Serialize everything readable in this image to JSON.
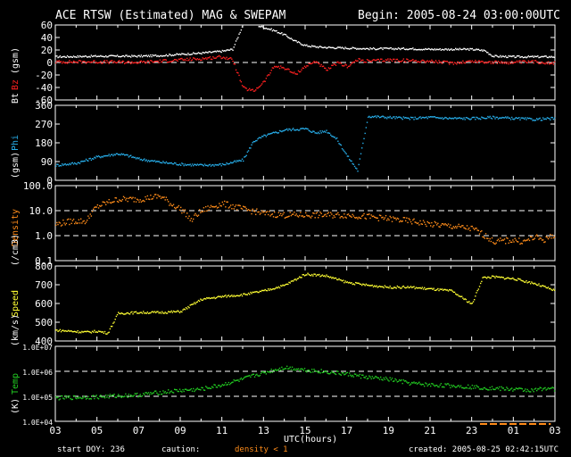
{
  "header": {
    "title": "ACE RTSW (Estimated) MAG & SWEPAM",
    "begin": "Begin: 2005-08-24 03:00:00UTC"
  },
  "footer": {
    "start_doy": "start DOY: 236",
    "caution_label": "caution:",
    "caution_value": "density < 1",
    "created": "created: 2005-08-25 02:42:15UTC"
  },
  "colors": {
    "bt": "#ffffff",
    "bz": "#ff2020",
    "phi": "#27aeea",
    "density": "#ff8c1a",
    "speed": "#ffff33",
    "temp": "#22cc22",
    "caution_bar": "#ff8c1a",
    "frame": "#ffffff"
  },
  "chart_data": [
    {
      "type": "scatter",
      "title": "ACE RTSW (Estimated) MAG & SWEPAM",
      "ylabel_parts": [
        "Bt",
        "Bz",
        "(gsm)"
      ],
      "ylim": [
        -60,
        60
      ],
      "yticks": [
        60,
        40,
        20,
        0,
        -20,
        -40,
        -60
      ],
      "dashed": [
        0
      ],
      "xlim": [
        0,
        24
      ],
      "series": [
        {
          "name": "Bt",
          "color": "bt",
          "noise": 1.5,
          "points": [
            [
              0,
              10
            ],
            [
              2,
              11
            ],
            [
              4,
              11
            ],
            [
              5,
              12
            ],
            [
              6,
              14
            ],
            [
              7,
              16
            ],
            [
              8,
              19
            ],
            [
              8.5,
              22
            ],
            [
              9,
              62
            ],
            [
              9.5,
              62
            ],
            [
              10,
              57
            ],
            [
              10.5,
              52
            ],
            [
              11,
              45
            ],
            [
              11.5,
              35
            ],
            [
              12,
              28
            ],
            [
              12.5,
              26
            ],
            [
              13,
              25
            ],
            [
              14,
              24
            ],
            [
              15,
              23
            ],
            [
              16,
              23
            ],
            [
              17,
              23
            ],
            [
              18,
              22
            ],
            [
              19,
              22
            ],
            [
              20,
              22
            ],
            [
              20.6,
              20
            ],
            [
              21,
              11
            ],
            [
              22,
              10
            ],
            [
              23,
              10
            ],
            [
              24,
              10
            ]
          ]
        },
        {
          "name": "Bz",
          "color": "bz",
          "noise": 2.5,
          "points": [
            [
              0,
              2
            ],
            [
              2,
              2
            ],
            [
              4,
              1
            ],
            [
              5,
              3
            ],
            [
              6,
              5
            ],
            [
              7,
              7
            ],
            [
              8,
              10
            ],
            [
              8.5,
              5
            ],
            [
              9,
              -40
            ],
            [
              9.5,
              -45
            ],
            [
              10,
              -30
            ],
            [
              10.5,
              -5
            ],
            [
              11,
              -8
            ],
            [
              11.5,
              -18
            ],
            [
              12,
              -5
            ],
            [
              12.5,
              3
            ],
            [
              13,
              -12
            ],
            [
              13.5,
              0
            ],
            [
              14,
              -5
            ],
            [
              14.5,
              5
            ],
            [
              15,
              3
            ],
            [
              16,
              5
            ],
            [
              17,
              4
            ],
            [
              18,
              3
            ],
            [
              19,
              0
            ],
            [
              20,
              3
            ],
            [
              20.6,
              2
            ],
            [
              21,
              1
            ],
            [
              22,
              1
            ],
            [
              23,
              2
            ],
            [
              24,
              0
            ]
          ]
        }
      ]
    },
    {
      "type": "scatter",
      "ylabel_parts": [
        "Phi",
        "(gsm)"
      ],
      "ylim": [
        0,
        360
      ],
      "yticks": [
        360,
        270,
        180,
        90,
        0
      ],
      "dashed": [],
      "xlim": [
        0,
        24
      ],
      "series": [
        {
          "name": "Phi",
          "color": "phi",
          "noise": 6,
          "points": [
            [
              0,
              75
            ],
            [
              1,
              85
            ],
            [
              2,
              115
            ],
            [
              3,
              130
            ],
            [
              3.5,
              120
            ],
            [
              4,
              105
            ],
            [
              5,
              90
            ],
            [
              6,
              80
            ],
            [
              7,
              75
            ],
            [
              8,
              78
            ],
            [
              9,
              100
            ],
            [
              9.5,
              190
            ],
            [
              10,
              215
            ],
            [
              10.5,
              230
            ],
            [
              11,
              245
            ],
            [
              12,
              250
            ],
            [
              12.5,
              230
            ],
            [
              13,
              240
            ],
            [
              13.5,
              200
            ],
            [
              14,
              120
            ],
            [
              14.5,
              50
            ],
            [
              15,
              310
            ],
            [
              16,
              305
            ],
            [
              17,
              300
            ],
            [
              18,
              305
            ],
            [
              19,
              300
            ],
            [
              20,
              300
            ],
            [
              21,
              305
            ],
            [
              22,
              300
            ],
            [
              23,
              295
            ],
            [
              24,
              300
            ]
          ]
        }
      ]
    },
    {
      "type": "scatter",
      "ylabel_parts": [
        "Density",
        "(/cm3)"
      ],
      "yscale": "log",
      "ylim": [
        0.1,
        100
      ],
      "yticks": [
        100,
        10,
        1,
        0.1
      ],
      "yticklabels": [
        "100.0",
        "10.0",
        "1.0",
        "0.1"
      ],
      "dashed": [
        10,
        1
      ],
      "xlim": [
        0,
        24
      ],
      "series": [
        {
          "name": "Density",
          "color": "density",
          "noise": 0.12,
          "points": [
            [
              0,
              3
            ],
            [
              0.8,
              4
            ],
            [
              1.5,
              4
            ],
            [
              2,
              15
            ],
            [
              3,
              30
            ],
            [
              4,
              30
            ],
            [
              5,
              40
            ],
            [
              5.5,
              20
            ],
            [
              6,
              12
            ],
            [
              6.5,
              4
            ],
            [
              7,
              10
            ],
            [
              8,
              20
            ],
            [
              9,
              12
            ],
            [
              10,
              8
            ],
            [
              11,
              7
            ],
            [
              12,
              7
            ],
            [
              13,
              7
            ],
            [
              14,
              7
            ],
            [
              15,
              6
            ],
            [
              16,
              5
            ],
            [
              17,
              4
            ],
            [
              18,
              3
            ],
            [
              19,
              2.5
            ],
            [
              20,
              2
            ],
            [
              20.5,
              1.2
            ],
            [
              21,
              0.6
            ],
            [
              22,
              0.7
            ],
            [
              22.5,
              0.6
            ],
            [
              23,
              0.9
            ],
            [
              23.5,
              0.7
            ],
            [
              24,
              1.2
            ]
          ]
        }
      ]
    },
    {
      "type": "scatter",
      "ylabel_parts": [
        "Speed",
        "(km/s)"
      ],
      "ylim": [
        400,
        800
      ],
      "yticks": [
        800,
        700,
        600,
        500,
        400
      ],
      "dashed": [],
      "xlim": [
        0,
        24
      ],
      "series": [
        {
          "name": "Speed",
          "color": "speed",
          "noise": 6,
          "points": [
            [
              0,
              460
            ],
            [
              1.5,
              450
            ],
            [
              2,
              455
            ],
            [
              2.5,
              445
            ],
            [
              3,
              550
            ],
            [
              4,
              555
            ],
            [
              5,
              555
            ],
            [
              6,
              560
            ],
            [
              7,
              625
            ],
            [
              8,
              640
            ],
            [
              9,
              650
            ],
            [
              10,
              670
            ],
            [
              11,
              700
            ],
            [
              11.5,
              730
            ],
            [
              12,
              760
            ],
            [
              13,
              750
            ],
            [
              14,
              715
            ],
            [
              15,
              700
            ],
            [
              16,
              690
            ],
            [
              17,
              690
            ],
            [
              18,
              680
            ],
            [
              19,
              670
            ],
            [
              20,
              600
            ],
            [
              20.5,
              740
            ],
            [
              21,
              745
            ],
            [
              22,
              735
            ],
            [
              23,
              710
            ],
            [
              24,
              670
            ]
          ]
        }
      ]
    },
    {
      "type": "scatter",
      "ylabel_parts": [
        "Temp",
        "(K)"
      ],
      "yscale": "log",
      "ylim": [
        10000,
        10000000
      ],
      "yticks": [
        10000000,
        1000000,
        100000,
        10000
      ],
      "yticklabels": [
        "1.0E+07",
        "1.0E+06",
        "1.0E+05",
        "1.0E+04"
      ],
      "dashed": [
        1000000,
        100000
      ],
      "xlim": [
        0,
        24
      ],
      "series": [
        {
          "name": "Temp",
          "color": "temp",
          "noise": 0.08,
          "points": [
            [
              0,
              90000
            ],
            [
              2,
              100000
            ],
            [
              3,
              110000
            ],
            [
              4,
              120000
            ],
            [
              5,
              150000
            ],
            [
              6,
              180000
            ],
            [
              7,
              200000
            ],
            [
              8,
              300000
            ],
            [
              9,
              500000
            ],
            [
              10,
              900000
            ],
            [
              11,
              1500000
            ],
            [
              12,
              1200000
            ],
            [
              13,
              1000000
            ],
            [
              14,
              800000
            ],
            [
              15,
              600000
            ],
            [
              16,
              500000
            ],
            [
              17,
              350000
            ],
            [
              18,
              300000
            ],
            [
              19,
              280000
            ],
            [
              20,
              250000
            ],
            [
              21,
              220000
            ],
            [
              22,
              200000
            ],
            [
              23,
              180000
            ],
            [
              23.5,
              230000
            ],
            [
              24,
              200000
            ]
          ]
        }
      ]
    }
  ],
  "xaxis": {
    "label": "UTC(hours)",
    "ticks": [
      "03",
      "05",
      "07",
      "09",
      "11",
      "13",
      "15",
      "17",
      "19",
      "21",
      "23",
      "01",
      "03"
    ],
    "caution_segments": [
      [
        20.4,
        23.8
      ]
    ]
  }
}
